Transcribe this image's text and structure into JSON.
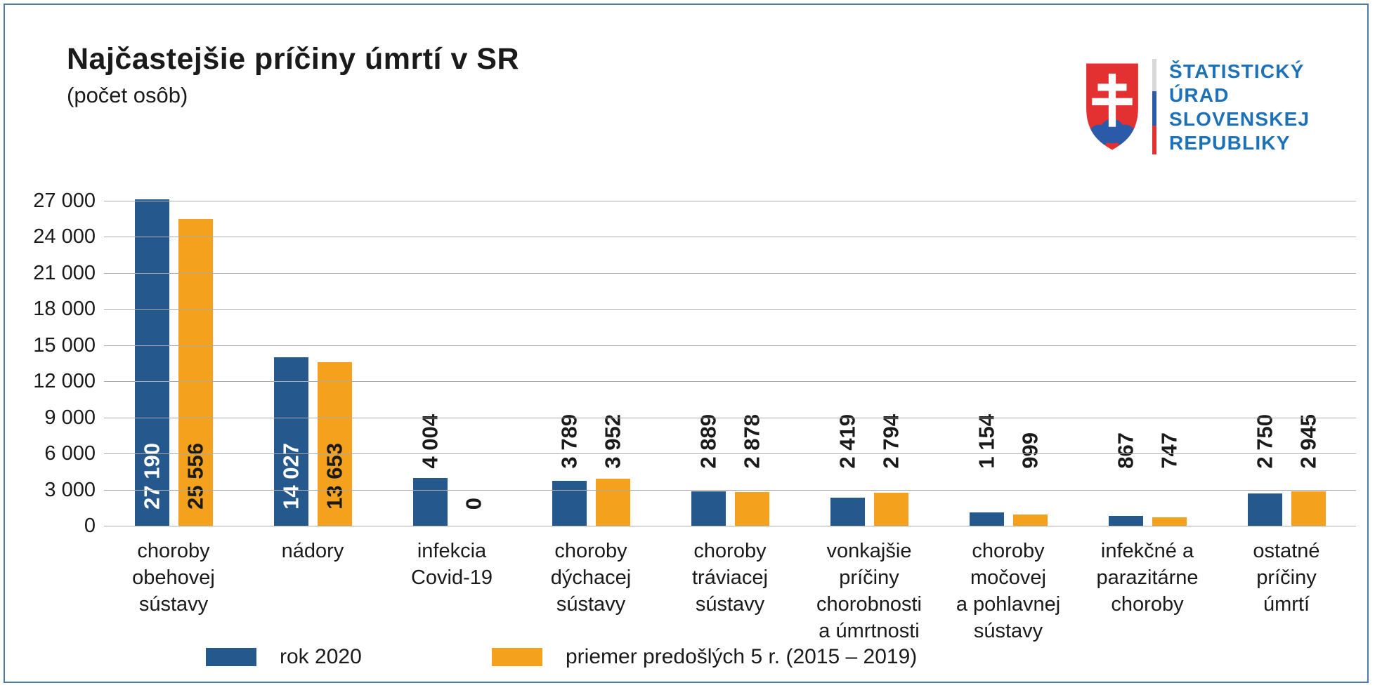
{
  "header": {
    "title": "Najčastejšie príčiny úmrtí v SR",
    "subtitle": "(počet osôb)",
    "logo": {
      "line1": "ŠTATISTICKÝ",
      "line2": "ÚRAD",
      "line3": "SLOVENSKEJ",
      "line4": "REPUBLIKY"
    }
  },
  "colors": {
    "series_2020": "#25588c",
    "series_avg": "#f4a11d",
    "gridline": "#ababab",
    "frame_border": "#4d7ca9",
    "logo_red": "#e23130",
    "logo_blue": "#2b5ba8",
    "logo_text_blue": "#1d71b8",
    "inside_label_on_blue": "#ffffff",
    "inside_label_on_orange": "#1a1a1a"
  },
  "chart_data": {
    "type": "bar",
    "title": "Najčastejšie príčiny úmrtí v SR",
    "subtitle": "(počet osôb)",
    "categories": [
      "choroby\nobehovej\nsústavy",
      "nádory",
      "infekcia\nCovid-19",
      "choroby\ndýchacej\nsústavy",
      "choroby\ntráviacej\nsústavy",
      "vonkajšie\npríčiny\nchorobnosti\na úmrtnosti",
      "choroby\nmočovej\na pohlavnej\nsústavy",
      "infekčné a\nparazitárne\nchoroby",
      "ostatné\npríčiny\númrtí"
    ],
    "series": [
      {
        "name": "rok 2020",
        "color": "#25588c",
        "values": [
          27190,
          14027,
          4004,
          3789,
          2889,
          2419,
          1154,
          867,
          2750
        ],
        "labels": [
          "27 190",
          "14 027",
          "4 004",
          "3 789",
          "2 889",
          "2 419",
          "1 154",
          "867",
          "2 750"
        ]
      },
      {
        "name": "priemer predošlých 5 r. (2015 – 2019)",
        "color": "#f4a11d",
        "values": [
          25556,
          13653,
          0,
          3952,
          2878,
          2794,
          999,
          747,
          2945
        ],
        "labels": [
          "25 556",
          "13 653",
          "0",
          "3 952",
          "2 878",
          "2 794",
          "999",
          "747",
          "2 945"
        ]
      }
    ],
    "y_ticks": [
      0,
      3000,
      6000,
      9000,
      12000,
      15000,
      18000,
      21000,
      24000,
      27000
    ],
    "y_tick_labels": [
      "0",
      "3 000",
      "6 000",
      "9 000",
      "12 000",
      "15 000",
      "18 000",
      "21 000",
      "24 000",
      "27 000"
    ],
    "ylim": [
      0,
      28500
    ],
    "grid": "horizontal",
    "legend_position": "bottom",
    "value_label_rotation": "vertical"
  }
}
